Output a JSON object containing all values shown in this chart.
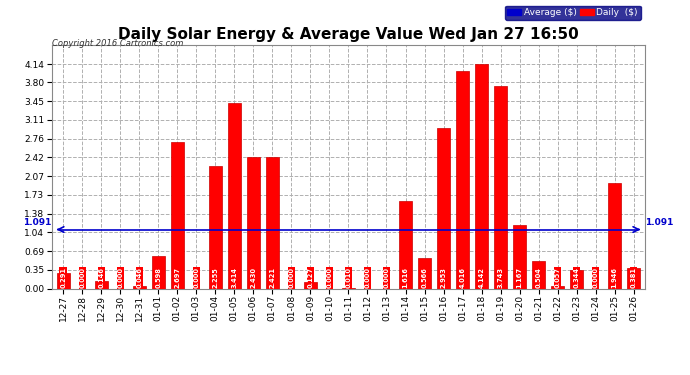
{
  "title": "Daily Solar Energy & Average Value Wed Jan 27 16:50",
  "copyright": "Copyright 2016 Cartronics.com",
  "categories": [
    "12-27",
    "12-28",
    "12-29",
    "12-30",
    "12-31",
    "01-01",
    "01-02",
    "01-03",
    "01-04",
    "01-05",
    "01-06",
    "01-07",
    "01-08",
    "01-09",
    "01-10",
    "01-11",
    "01-12",
    "01-13",
    "01-14",
    "01-15",
    "01-16",
    "01-17",
    "01-18",
    "01-19",
    "01-20",
    "01-21",
    "01-22",
    "01-23",
    "01-24",
    "01-25",
    "01-26"
  ],
  "values": [
    0.291,
    0.0,
    0.146,
    0.0,
    0.046,
    0.598,
    2.697,
    0.0,
    2.255,
    3.414,
    2.43,
    2.421,
    0.0,
    0.127,
    0.0,
    0.01,
    0.0,
    0.0,
    1.616,
    0.566,
    2.953,
    4.016,
    4.142,
    3.743,
    1.167,
    0.504,
    0.057,
    0.344,
    0.0,
    1.946,
    0.381
  ],
  "average_value": 1.091,
  "ylim": [
    0.0,
    4.49
  ],
  "yticks": [
    0.0,
    0.35,
    0.69,
    1.04,
    1.38,
    1.73,
    2.07,
    2.42,
    2.76,
    3.11,
    3.45,
    3.8,
    4.14
  ],
  "bar_color": "#ff0000",
  "bar_edge_color": "#cc0000",
  "avg_line_color": "#0000cc",
  "background_color": "#ffffff",
  "grid_color": "#b0b0b0",
  "title_fontsize": 11,
  "tick_fontsize": 6.5,
  "avg_label": "Average ($)",
  "daily_label": "Daily  ($)"
}
